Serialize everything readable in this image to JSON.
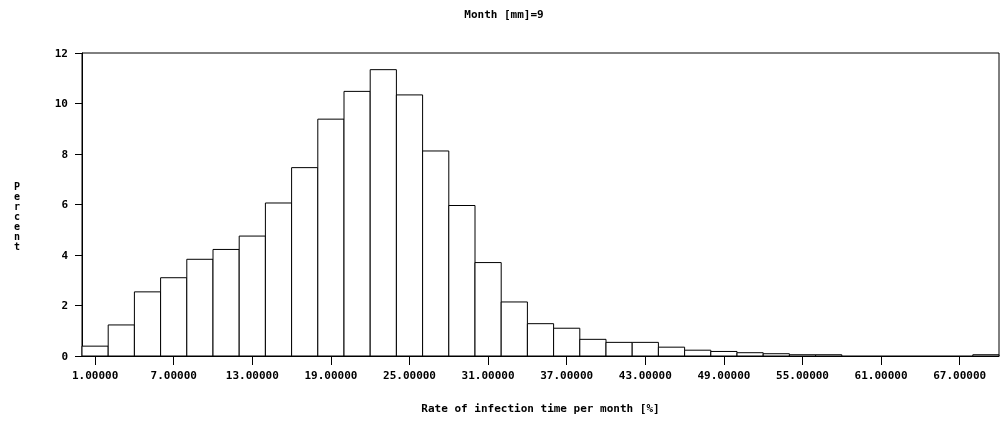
{
  "chart_data": {
    "type": "histogram",
    "subtitle": "Month [mm]=9",
    "xlabel": "Rate of infection time per month [%]",
    "ylabel": "Percent",
    "bins": [
      0,
      2,
      4,
      6,
      8,
      10,
      12,
      14,
      16,
      18,
      20,
      22,
      24,
      26,
      28,
      30,
      32,
      34,
      36,
      38,
      40,
      42,
      44,
      46,
      48,
      50,
      52,
      54,
      56,
      58,
      60,
      62,
      64,
      66,
      68,
      70
    ],
    "values": [
      0.39,
      1.23,
      2.54,
      3.1,
      3.83,
      4.22,
      4.75,
      6.06,
      7.46,
      9.38,
      10.48,
      11.34,
      10.34,
      8.12,
      5.96,
      3.7,
      2.14,
      1.28,
      1.1,
      0.66,
      0.54,
      0.54,
      0.35,
      0.23,
      0.18,
      0.13,
      0.09,
      0.05,
      0.05,
      0,
      0,
      0,
      0,
      0,
      0.05
    ],
    "color": "#ffffff",
    "xlim": [
      0,
      70
    ],
    "xticks": [
      {
        "value": 1,
        "label": "1.00000"
      },
      {
        "value": 7,
        "label": "7.00000"
      },
      {
        "value": 13,
        "label": "13.00000"
      },
      {
        "value": 19,
        "label": "19.00000"
      },
      {
        "value": 25,
        "label": "25.00000"
      },
      {
        "value": 31,
        "label": "31.00000"
      },
      {
        "value": 37,
        "label": "37.00000"
      },
      {
        "value": 43,
        "label": "43.00000"
      },
      {
        "value": 49,
        "label": "49.00000"
      },
      {
        "value": 55,
        "label": "55.00000"
      },
      {
        "value": 61,
        "label": "61.00000"
      },
      {
        "value": 67,
        "label": "67.00000"
      }
    ],
    "ylim": [
      0,
      12
    ],
    "yticks": [
      0,
      2,
      4,
      6,
      8,
      10,
      12
    ],
    "grid": false
  }
}
